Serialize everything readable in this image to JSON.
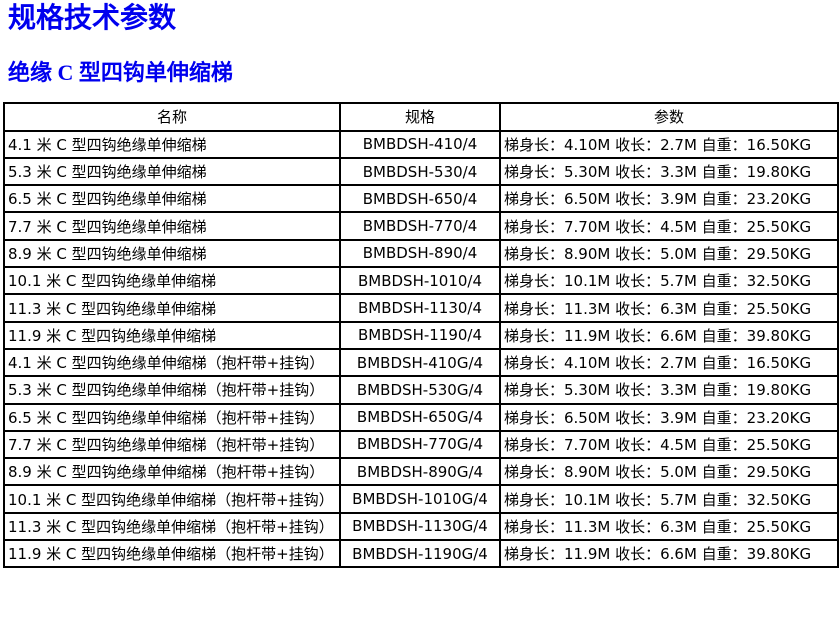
{
  "page": {
    "title": "规格技术参数",
    "subtitle": "绝缘 C 型四钩单伸缩梯"
  },
  "colors": {
    "heading_blue": "#0000ee",
    "table_border": "#000000",
    "text": "#000000",
    "background": "#ffffff"
  },
  "table": {
    "headers": [
      "名称",
      "规格",
      "参数"
    ],
    "rows": [
      [
        "4.1 米 C 型四钩绝缘单伸缩梯",
        "BMBDSH-410/4",
        "梯身长：4.10M 收长：2.7M 自重：16.50KG"
      ],
      [
        "5.3 米 C 型四钩绝缘单伸缩梯",
        "BMBDSH-530/4",
        "梯身长：5.30M 收长：3.3M 自重：19.80KG"
      ],
      [
        "6.5 米 C 型四钩绝缘单伸缩梯",
        "BMBDSH-650/4",
        "梯身长：6.50M 收长：3.9M 自重：23.20KG"
      ],
      [
        "7.7 米 C 型四钩绝缘单伸缩梯",
        "BMBDSH-770/4",
        "梯身长：7.70M 收长：4.5M 自重：25.50KG"
      ],
      [
        "8.9 米 C 型四钩绝缘单伸缩梯",
        "BMBDSH-890/4",
        "梯身长：8.90M 收长：5.0M 自重：29.50KG"
      ],
      [
        "10.1 米 C 型四钩绝缘单伸缩梯",
        "BMBDSH-1010/4",
        "梯身长：10.1M 收长：5.7M 自重：32.50KG"
      ],
      [
        "11.3 米 C 型四钩绝缘单伸缩梯",
        "BMBDSH-1130/4",
        "梯身长：11.3M 收长：6.3M 自重：25.50KG"
      ],
      [
        "11.9 米 C 型四钩绝缘单伸缩梯",
        "BMBDSH-1190/4",
        "梯身长：11.9M 收长：6.6M 自重：39.80KG"
      ],
      [
        "4.1 米 C 型四钩绝缘单伸缩梯（抱杆带+挂钩）",
        "BMBDSH-410G/4",
        "梯身长：4.10M 收长：2.7M 自重：16.50KG"
      ],
      [
        "5.3 米 C 型四钩绝缘单伸缩梯（抱杆带+挂钩）",
        "BMBDSH-530G/4",
        "梯身长：5.30M 收长：3.3M 自重：19.80KG"
      ],
      [
        "6.5 米 C 型四钩绝缘单伸缩梯（抱杆带+挂钩）",
        "BMBDSH-650G/4",
        "梯身长：6.50M 收长：3.9M 自重：23.20KG"
      ],
      [
        "7.7 米 C 型四钩绝缘单伸缩梯（抱杆带+挂钩）",
        "BMBDSH-770G/4",
        "梯身长：7.70M 收长：4.5M 自重：25.50KG"
      ],
      [
        "8.9 米 C 型四钩绝缘单伸缩梯（抱杆带+挂钩）",
        "BMBDSH-890G/4",
        "梯身长：8.90M 收长：5.0M 自重：29.50KG"
      ],
      [
        "10.1 米 C 型四钩绝缘单伸缩梯（抱杆带+挂钩）",
        "BMBDSH-1010G/4",
        "梯身长：10.1M 收长：5.7M 自重：32.50KG"
      ],
      [
        "11.3 米 C 型四钩绝缘单伸缩梯（抱杆带+挂钩）",
        "BMBDSH-1130G/4",
        "梯身长：11.3M 收长：6.3M 自重：25.50KG"
      ],
      [
        "11.9 米 C 型四钩绝缘单伸缩梯（抱杆带+挂钩）",
        "BMBDSH-1190G/4",
        "梯身长：11.9M 收长：6.6M 自重：39.80KG"
      ]
    ]
  }
}
